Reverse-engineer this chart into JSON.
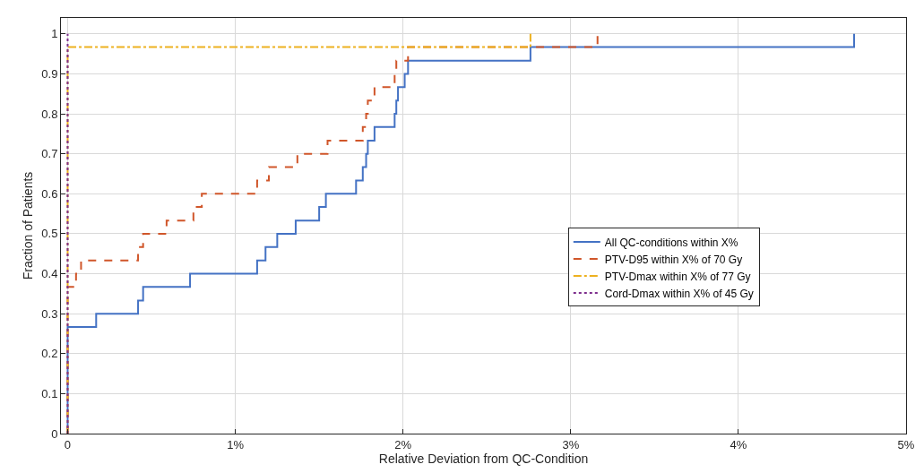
{
  "chart_data": {
    "type": "step",
    "xlabel": "Relative Deviation from QC-Condition",
    "ylabel": "Fraction of Patients",
    "xlim": [
      -0.04,
      5
    ],
    "xticks": [
      {
        "value": 0,
        "label": "0"
      },
      {
        "value": 1,
        "label": "1%"
      },
      {
        "value": 2,
        "label": "2%"
      },
      {
        "value": 3,
        "label": "3%"
      },
      {
        "value": 4,
        "label": "4%"
      },
      {
        "value": 5,
        "label": "5%"
      }
    ],
    "ylim": [
      0,
      1.04
    ],
    "yticks": [
      0,
      0.1,
      0.2,
      0.3,
      0.4,
      0.5,
      0.6,
      0.7,
      0.8,
      0.9,
      1
    ],
    "grid": true,
    "legend": "right",
    "marker": "none",
    "series": [
      {
        "name": "All QC-conditions within X%",
        "color": "#4472c4",
        "line_style": "solid",
        "x": [
          0,
          0,
          0.17,
          0.42,
          0.45,
          0.73,
          1.13,
          1.18,
          1.25,
          1.36,
          1.5,
          1.54,
          1.72,
          1.76,
          1.78,
          1.79,
          1.83,
          1.95,
          1.96,
          1.97,
          2.01,
          2.03,
          2.76,
          4.69
        ],
        "values": [
          0,
          0.267,
          0.3,
          0.333,
          0.367,
          0.4,
          0.433,
          0.467,
          0.5,
          0.533,
          0.567,
          0.6,
          0.633,
          0.667,
          0.7,
          0.733,
          0.767,
          0.8,
          0.833,
          0.867,
          0.9,
          0.933,
          0.967,
          1
        ]
      },
      {
        "name": "PTV-D95 within X% of 70 Gy",
        "color": "#d0562a",
        "line_style": "dashed",
        "x": [
          0,
          0,
          0.05,
          0.08,
          0.42,
          0.45,
          0.59,
          0.75,
          0.8,
          1.13,
          1.2,
          1.37,
          1.55,
          1.76,
          1.78,
          1.79,
          1.83,
          1.95,
          1.96,
          2.03,
          3.16
        ],
        "values": [
          0,
          0.367,
          0.4,
          0.433,
          0.467,
          0.5,
          0.533,
          0.567,
          0.6,
          0.633,
          0.667,
          0.7,
          0.733,
          0.767,
          0.8,
          0.833,
          0.867,
          0.9,
          0.933,
          0.967,
          1
        ]
      },
      {
        "name": "PTV-Dmax within X% of 77 Gy",
        "color": "#edb120",
        "line_style": "dashdot",
        "x": [
          0,
          0,
          2.76
        ],
        "values": [
          0,
          0.967,
          1
        ]
      },
      {
        "name": "Cord-Dmax within X% of 45 Gy",
        "color": "#7e2f8e",
        "line_style": "dotted",
        "x": [
          0,
          0
        ],
        "values": [
          0,
          1
        ]
      }
    ]
  }
}
